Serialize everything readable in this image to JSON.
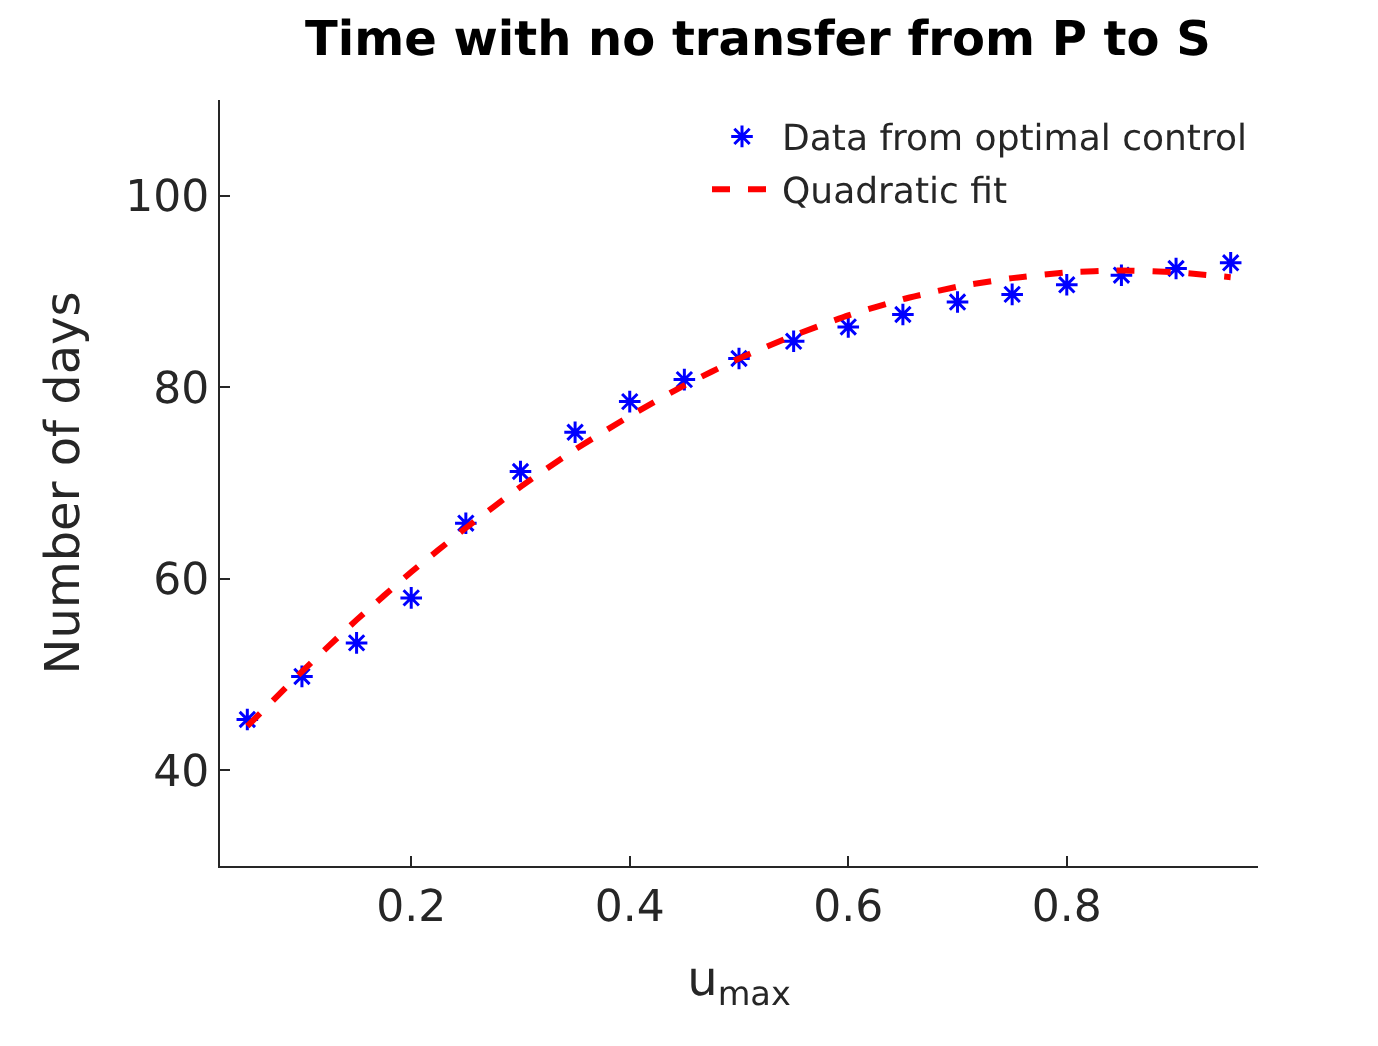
{
  "chart_data": {
    "type": "scatter",
    "title": "Time with no transfer from P to S",
    "xlabel": "u$_{max}$",
    "ylabel": "Number of days",
    "xlim": [
      0.025,
      0.975
    ],
    "xticks": [
      0.2,
      0.4,
      0.6,
      0.8
    ],
    "ylim": [
      30,
      110
    ],
    "yticks": [
      40,
      60,
      80,
      100
    ],
    "legend": "top right",
    "series": [
      {
        "name": "Data from optimal control",
        "marker": "cross",
        "color": "#0000ff",
        "x": [
          0.05,
          0.1,
          0.15,
          0.2,
          0.25,
          0.3,
          0.35,
          0.4,
          0.45,
          0.5,
          0.55,
          0.6,
          0.65,
          0.7,
          0.75,
          0.8,
          0.85,
          0.9,
          0.95
        ],
        "values": [
          45.3,
          49.8,
          53.3,
          58.0,
          65.8,
          71.2,
          75.3,
          78.5,
          80.8,
          83.0,
          84.8,
          86.3,
          87.6,
          88.9,
          89.7,
          90.7,
          91.7,
          92.4,
          93.0
        ]
      },
      {
        "name": "Quadratic fit",
        "type": "line",
        "line_style": "dashed",
        "color": "#ff0000",
        "x": [
          0.05,
          0.1,
          0.15,
          0.2,
          0.25,
          0.3,
          0.35,
          0.4,
          0.45,
          0.5,
          0.55,
          0.6,
          0.65,
          0.7,
          0.75,
          0.8,
          0.85,
          0.9,
          0.95
        ],
        "values": [
          44.6,
          50.3,
          55.7,
          60.7,
          65.3,
          69.6,
          73.5,
          77.0,
          80.2,
          83.0,
          85.4,
          87.5,
          89.2,
          90.5,
          91.4,
          92.0,
          92.2,
          92.0,
          91.5
        ]
      }
    ]
  }
}
